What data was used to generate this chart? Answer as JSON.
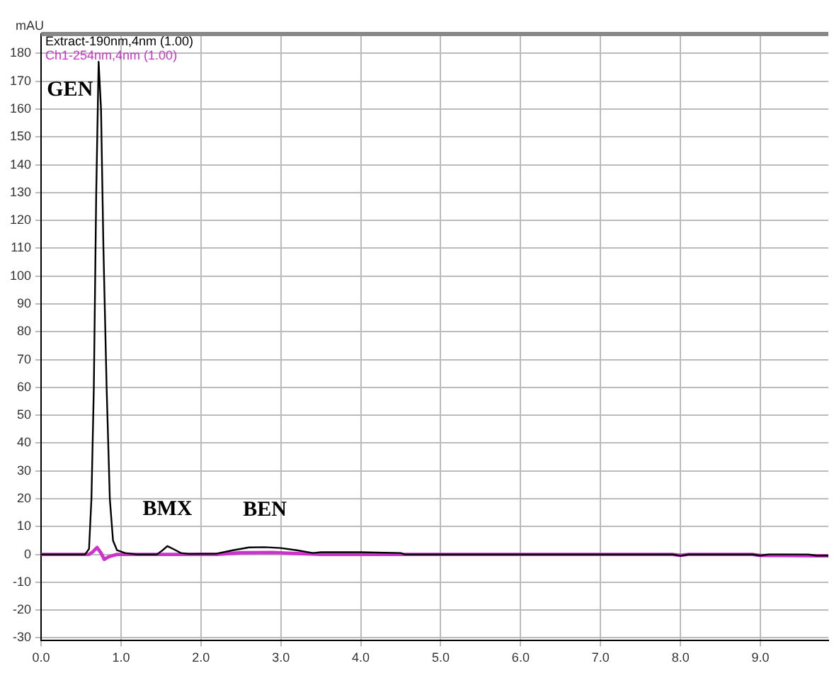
{
  "chart_data": {
    "type": "line",
    "ylabel": "mAU",
    "xlim": [
      0,
      9.85
    ],
    "xticks": [
      {
        "value": 0,
        "label": "0.0"
      },
      {
        "value": 1,
        "label": "1.0"
      },
      {
        "value": 2,
        "label": "2.0"
      },
      {
        "value": 3,
        "label": "3.0"
      },
      {
        "value": 4,
        "label": "4.0"
      },
      {
        "value": 5,
        "label": "5.0"
      },
      {
        "value": 6,
        "label": "6.0"
      },
      {
        "value": 7,
        "label": "7.0"
      },
      {
        "value": 8,
        "label": "8.0"
      },
      {
        "value": 9,
        "label": "9.0"
      }
    ],
    "ylim": [
      -31,
      187
    ],
    "yticks": [
      -30,
      -20,
      -10,
      0,
      10,
      20,
      30,
      40,
      50,
      60,
      70,
      80,
      90,
      100,
      110,
      120,
      130,
      140,
      150,
      160,
      170,
      180
    ],
    "grid": true,
    "legend": "top left",
    "line_style": "solid",
    "marker": "none",
    "series": [
      {
        "name": "Extract-190nm,4nm (1.00)",
        "color": "#000000",
        "x": [
          0,
          0.55,
          0.6,
          0.63,
          0.66,
          0.69,
          0.72,
          0.75,
          0.78,
          0.82,
          0.86,
          0.9,
          0.95,
          1.05,
          1.2,
          1.45,
          1.52,
          1.58,
          1.65,
          1.75,
          1.85,
          2.2,
          2.4,
          2.6,
          2.8,
          3.0,
          3.2,
          3.4,
          3.5,
          4.0,
          4.5,
          4.55,
          7.9,
          8.0,
          8.1,
          8.9,
          9.0,
          9.1,
          9.6,
          9.7,
          9.85
        ],
        "values": [
          0,
          0,
          2,
          20,
          60,
          130,
          177,
          160,
          110,
          60,
          20,
          5,
          1.5,
          0.5,
          0,
          0,
          1.5,
          3,
          2,
          0.5,
          0.2,
          0.3,
          1.5,
          2.5,
          2.6,
          2.3,
          1.5,
          0.5,
          0.8,
          0.8,
          0.5,
          0,
          0,
          -0.5,
          0,
          0,
          -0.4,
          0,
          0,
          -0.4,
          -0.4
        ]
      },
      {
        "name": "Ch1-254nm,4nm (1.00)",
        "color": "#cc33cc",
        "x": [
          0,
          0.6,
          0.65,
          0.7,
          0.75,
          0.79,
          0.85,
          0.95,
          1.2,
          2.2,
          2.5,
          2.9,
          3.2,
          3.5,
          7.9,
          8.0,
          8.1,
          8.9,
          9.0,
          9.3,
          9.7,
          9.85
        ],
        "values": [
          0,
          0,
          1,
          2.5,
          0.5,
          -1.8,
          -0.8,
          0,
          0,
          0,
          0.6,
          0.7,
          0.3,
          0,
          0,
          -0.3,
          0,
          0,
          -0.4,
          -0.4,
          -0.5,
          -0.5
        ]
      }
    ],
    "annotations": [
      {
        "text": "GEN",
        "x": 0.72,
        "y": 177
      },
      {
        "text": "BMX",
        "x": 1.58,
        "y": 3
      },
      {
        "text": "BEN",
        "x": 2.8,
        "y": 2.6
      }
    ]
  }
}
